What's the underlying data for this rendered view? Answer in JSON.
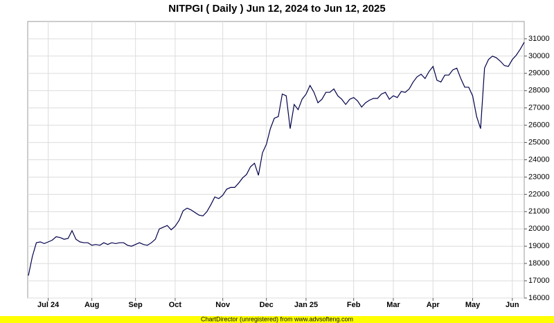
{
  "chart_data": {
    "type": "line",
    "title": "NITPGI ( Daily ) Jun 12, 2024 to Jun 12, 2025",
    "footer": "ChartDirector (unregistered) from www.advsofteng.com",
    "categories": [
      null,
      null,
      null,
      null,
      null,
      "Jul 24",
      null,
      null,
      null,
      null,
      null,
      null,
      null,
      null,
      null,
      null,
      "Aug",
      null,
      null,
      null,
      null,
      null,
      null,
      null,
      null,
      null,
      null,
      "Sep",
      null,
      null,
      null,
      null,
      null,
      null,
      null,
      null,
      null,
      "Oct",
      null,
      null,
      null,
      null,
      null,
      null,
      null,
      null,
      null,
      null,
      null,
      "Nov",
      null,
      null,
      null,
      null,
      null,
      null,
      null,
      null,
      null,
      null,
      "Dec",
      null,
      null,
      null,
      null,
      null,
      null,
      null,
      null,
      null,
      "Jan 25",
      null,
      null,
      null,
      null,
      null,
      null,
      null,
      null,
      null,
      null,
      null,
      "Feb",
      null,
      null,
      null,
      null,
      null,
      null,
      null,
      null,
      null,
      "Mar",
      null,
      null,
      null,
      null,
      null,
      null,
      null,
      null,
      null,
      "Apr",
      null,
      null,
      null,
      null,
      null,
      null,
      null,
      null,
      null,
      "May",
      null,
      null,
      null,
      null,
      null,
      null,
      null,
      null,
      null,
      "Jun",
      null,
      null,
      null
    ],
    "values": [
      17300,
      18400,
      19200,
      19250,
      19150,
      19250,
      19350,
      19550,
      19500,
      19400,
      19450,
      19900,
      19400,
      19250,
      19200,
      19200,
      19050,
      19100,
      19050,
      19200,
      19100,
      19200,
      19150,
      19200,
      19200,
      19050,
      19000,
      19100,
      19200,
      19100,
      19050,
      19200,
      19400,
      20000,
      20100,
      20200,
      19950,
      20150,
      20500,
      21050,
      21200,
      21100,
      20950,
      20800,
      20750,
      21000,
      21400,
      21850,
      21750,
      21950,
      22300,
      22400,
      22400,
      22650,
      22950,
      23150,
      23600,
      23800,
      23100,
      24400,
      24900,
      25800,
      26400,
      26500,
      27800,
      27700,
      25800,
      27200,
      26900,
      27500,
      27800,
      28300,
      27900,
      27300,
      27500,
      27900,
      27900,
      28100,
      27700,
      27500,
      27200,
      27500,
      27600,
      27400,
      27050,
      27300,
      27450,
      27550,
      27550,
      27800,
      27900,
      27500,
      27700,
      27600,
      27950,
      27900,
      28100,
      28500,
      28800,
      28950,
      28700,
      29100,
      29400,
      28600,
      28500,
      28900,
      28900,
      29200,
      29300,
      28700,
      28200,
      28200,
      27700,
      26500,
      25800,
      29300,
      29800,
      30000,
      29900,
      29700,
      29450,
      29400,
      29800,
      30050,
      30400,
      30800
    ],
    "color": "#00004a",
    "ylim": [
      16000,
      32000
    ],
    "yticks": [
      16000,
      17000,
      18000,
      19000,
      20000,
      21000,
      22000,
      23000,
      24000,
      25000,
      26000,
      27000,
      28000,
      29000,
      30000,
      31000
    ],
    "grid": true
  }
}
